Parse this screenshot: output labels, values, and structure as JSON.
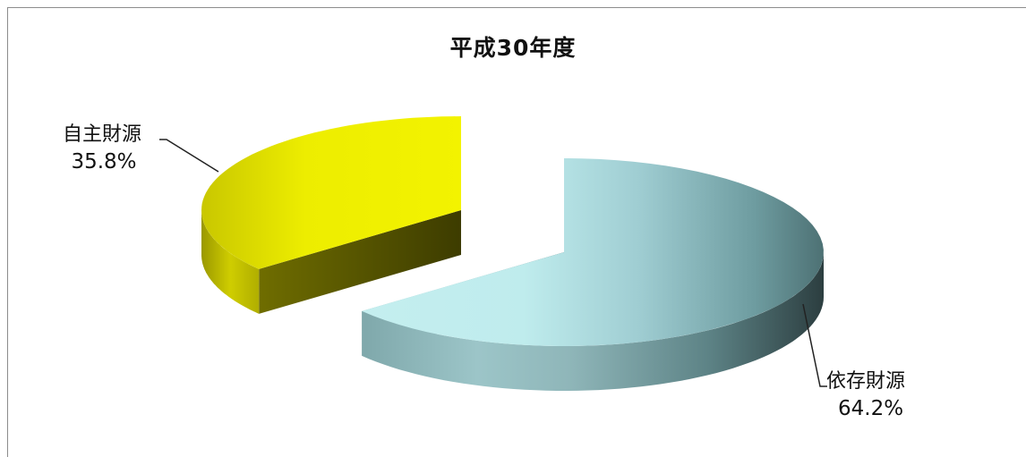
{
  "chart_data": {
    "type": "pie",
    "title": "平成30年度",
    "slices": [
      {
        "name": "自主財源",
        "value": 35.8,
        "label": "35.8%",
        "color": "#e5e500"
      },
      {
        "name": "依存財源",
        "value": 64.2,
        "label": "64.2%",
        "color": "#a9dcdf"
      }
    ],
    "style": "3d-exploded"
  }
}
